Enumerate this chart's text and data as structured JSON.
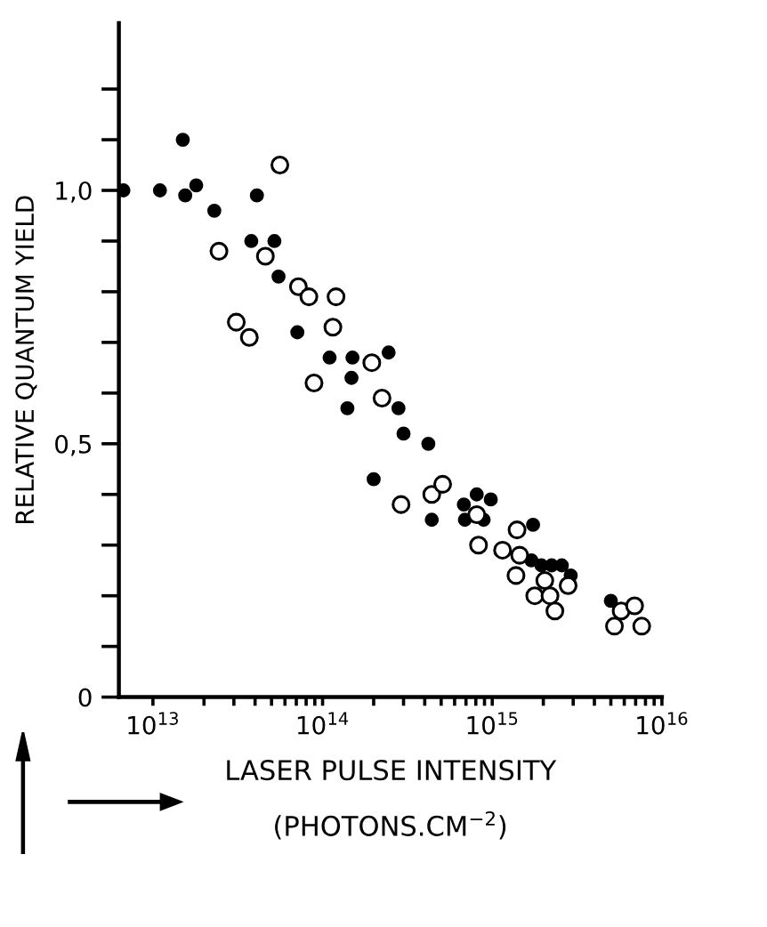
{
  "chart_data": {
    "type": "scatter",
    "xlabel": "LASER PULSE INTENSITY\n(PHOTONS.CM$^{−2}$)",
    "ylabel": "RELATIVE QUANTUM YIELD",
    "log": "x",
    "xlim": [
      6300000000000.0,
      1e+16
    ],
    "xticks": [
      {
        "value": 10000000000000.0,
        "label": "10$^{13}$"
      },
      {
        "value": 20000000000000.0,
        "label": null
      },
      {
        "value": 30000000000000.0,
        "label": null
      },
      {
        "value": 40000000000000.0,
        "label": null
      },
      {
        "value": 50000000000000.0,
        "label": null
      },
      {
        "value": 60000000000000.0,
        "label": null
      },
      {
        "value": 70000000000000.0,
        "label": null
      },
      {
        "value": 80000000000000.0,
        "label": null
      },
      {
        "value": 90000000000000.0,
        "label": null
      },
      {
        "value": 100000000000000.0,
        "label": "10$^{14}$"
      },
      {
        "value": 200000000000000.0,
        "label": null
      },
      {
        "value": 300000000000000.0,
        "label": null
      },
      {
        "value": 400000000000000.0,
        "label": null
      },
      {
        "value": 500000000000000.0,
        "label": null
      },
      {
        "value": 600000000000000.0,
        "label": null
      },
      {
        "value": 700000000000000.0,
        "label": null
      },
      {
        "value": 800000000000000.0,
        "label": null
      },
      {
        "value": 900000000000000.0,
        "label": null
      },
      {
        "value": 1000000000000000.0,
        "label": "10$^{15}$"
      },
      {
        "value": 2000000000000000.0,
        "label": null
      },
      {
        "value": 3000000000000000.0,
        "label": null
      },
      {
        "value": 4000000000000000.0,
        "label": null
      },
      {
        "value": 5000000000000000.0,
        "label": null
      },
      {
        "value": 6000000000000000.0,
        "label": null
      },
      {
        "value": 7000000000000000.0,
        "label": null
      },
      {
        "value": 8000000000000000.0,
        "label": null
      },
      {
        "value": 9000000000000000.0,
        "label": null
      },
      {
        "value": 1e+16,
        "label": "10$^{16}$"
      }
    ],
    "ylim": [
      0,
      1.33
    ],
    "yticks": [
      0,
      {
        "value": 0.1,
        "label": null
      },
      {
        "value": 0.2,
        "label": null
      },
      {
        "value": 0.3,
        "label": null
      },
      {
        "value": 0.4,
        "label": null
      },
      {
        "value": 0.5,
        "label": "0,5"
      },
      {
        "value": 0.6,
        "label": null
      },
      {
        "value": 0.7,
        "label": null
      },
      {
        "value": 0.8,
        "label": null
      },
      {
        "value": 0.9,
        "label": null
      },
      {
        "value": 1.0,
        "label": "1,0"
      },
      {
        "value": 1.1,
        "label": null
      },
      {
        "value": 1.2,
        "label": null
      }
    ],
    "grid": false,
    "marker": "circle",
    "series": [
      {
        "color": "#000000",
        "x": [
          6700000000000.0,
          11000000000000.0,
          15000000000000.0,
          15500000000000.0,
          18000000000000.0,
          23000000000000.0,
          41000000000000.0,
          38000000000000.0,
          52000000000000.0,
          55000000000000.0,
          71000000000000.0,
          110000000000000.0,
          150000000000000.0,
          245000000000000.0,
          148000000000000.0,
          140000000000000.0,
          200000000000000.0,
          280000000000000.0,
          300000000000000.0,
          420000000000000.0,
          440000000000000.0,
          680000000000000.0,
          810000000000000.0,
          980000000000000.0,
          690000000000000.0,
          890000000000000.0,
          1740000000000000.0,
          1700000000000000.0,
          1950000000000000.0,
          2240000000000000.0,
          2570000000000000.0,
          2900000000000000.0,
          5000000000000000.0
        ],
        "values": [
          1.0,
          1.0,
          1.1,
          0.99,
          1.01,
          0.96,
          0.99,
          0.9,
          0.9,
          0.83,
          0.72,
          0.67,
          0.67,
          0.68,
          0.63,
          0.57,
          0.43,
          0.57,
          0.52,
          0.5,
          0.35,
          0.38,
          0.4,
          0.39,
          0.35,
          0.35,
          0.34,
          0.27,
          0.26,
          0.26,
          0.26,
          0.24,
          0.19
        ]
      },
      {
        "color": "#000000",
        "x": [
          56000000000000.0,
          24500000000000.0,
          46000000000000.0,
          72000000000000.0,
          83000000000000.0,
          120000000000000.0,
          31000000000000.0,
          37000000000000.0,
          115000000000000.0,
          89000000000000.0,
          195000000000000.0,
          224000000000000.0,
          290000000000000.0,
          440000000000000.0,
          510000000000000.0,
          810000000000000.0,
          830000000000000.0,
          1150000000000000.0,
          1400000000000000.0,
          1450000000000000.0,
          1380000000000000.0,
          2040000000000000.0,
          1780000000000000.0,
          2190000000000000.0,
          2340000000000000.0,
          2800000000000000.0,
          5750000000000000.0,
          6900000000000000.0,
          5250000000000000.0,
          7600000000000000.0
        ],
        "values": [
          1.05,
          0.88,
          0.87,
          0.81,
          0.79,
          0.79,
          0.74,
          0.71,
          0.73,
          0.62,
          0.66,
          0.59,
          0.38,
          0.4,
          0.42,
          0.36,
          0.3,
          0.29,
          0.33,
          0.28,
          0.24,
          0.23,
          0.2,
          0.2,
          0.17,
          0.22,
          0.17,
          0.18,
          0.14,
          0.14
        ]
      }
    ]
  }
}
